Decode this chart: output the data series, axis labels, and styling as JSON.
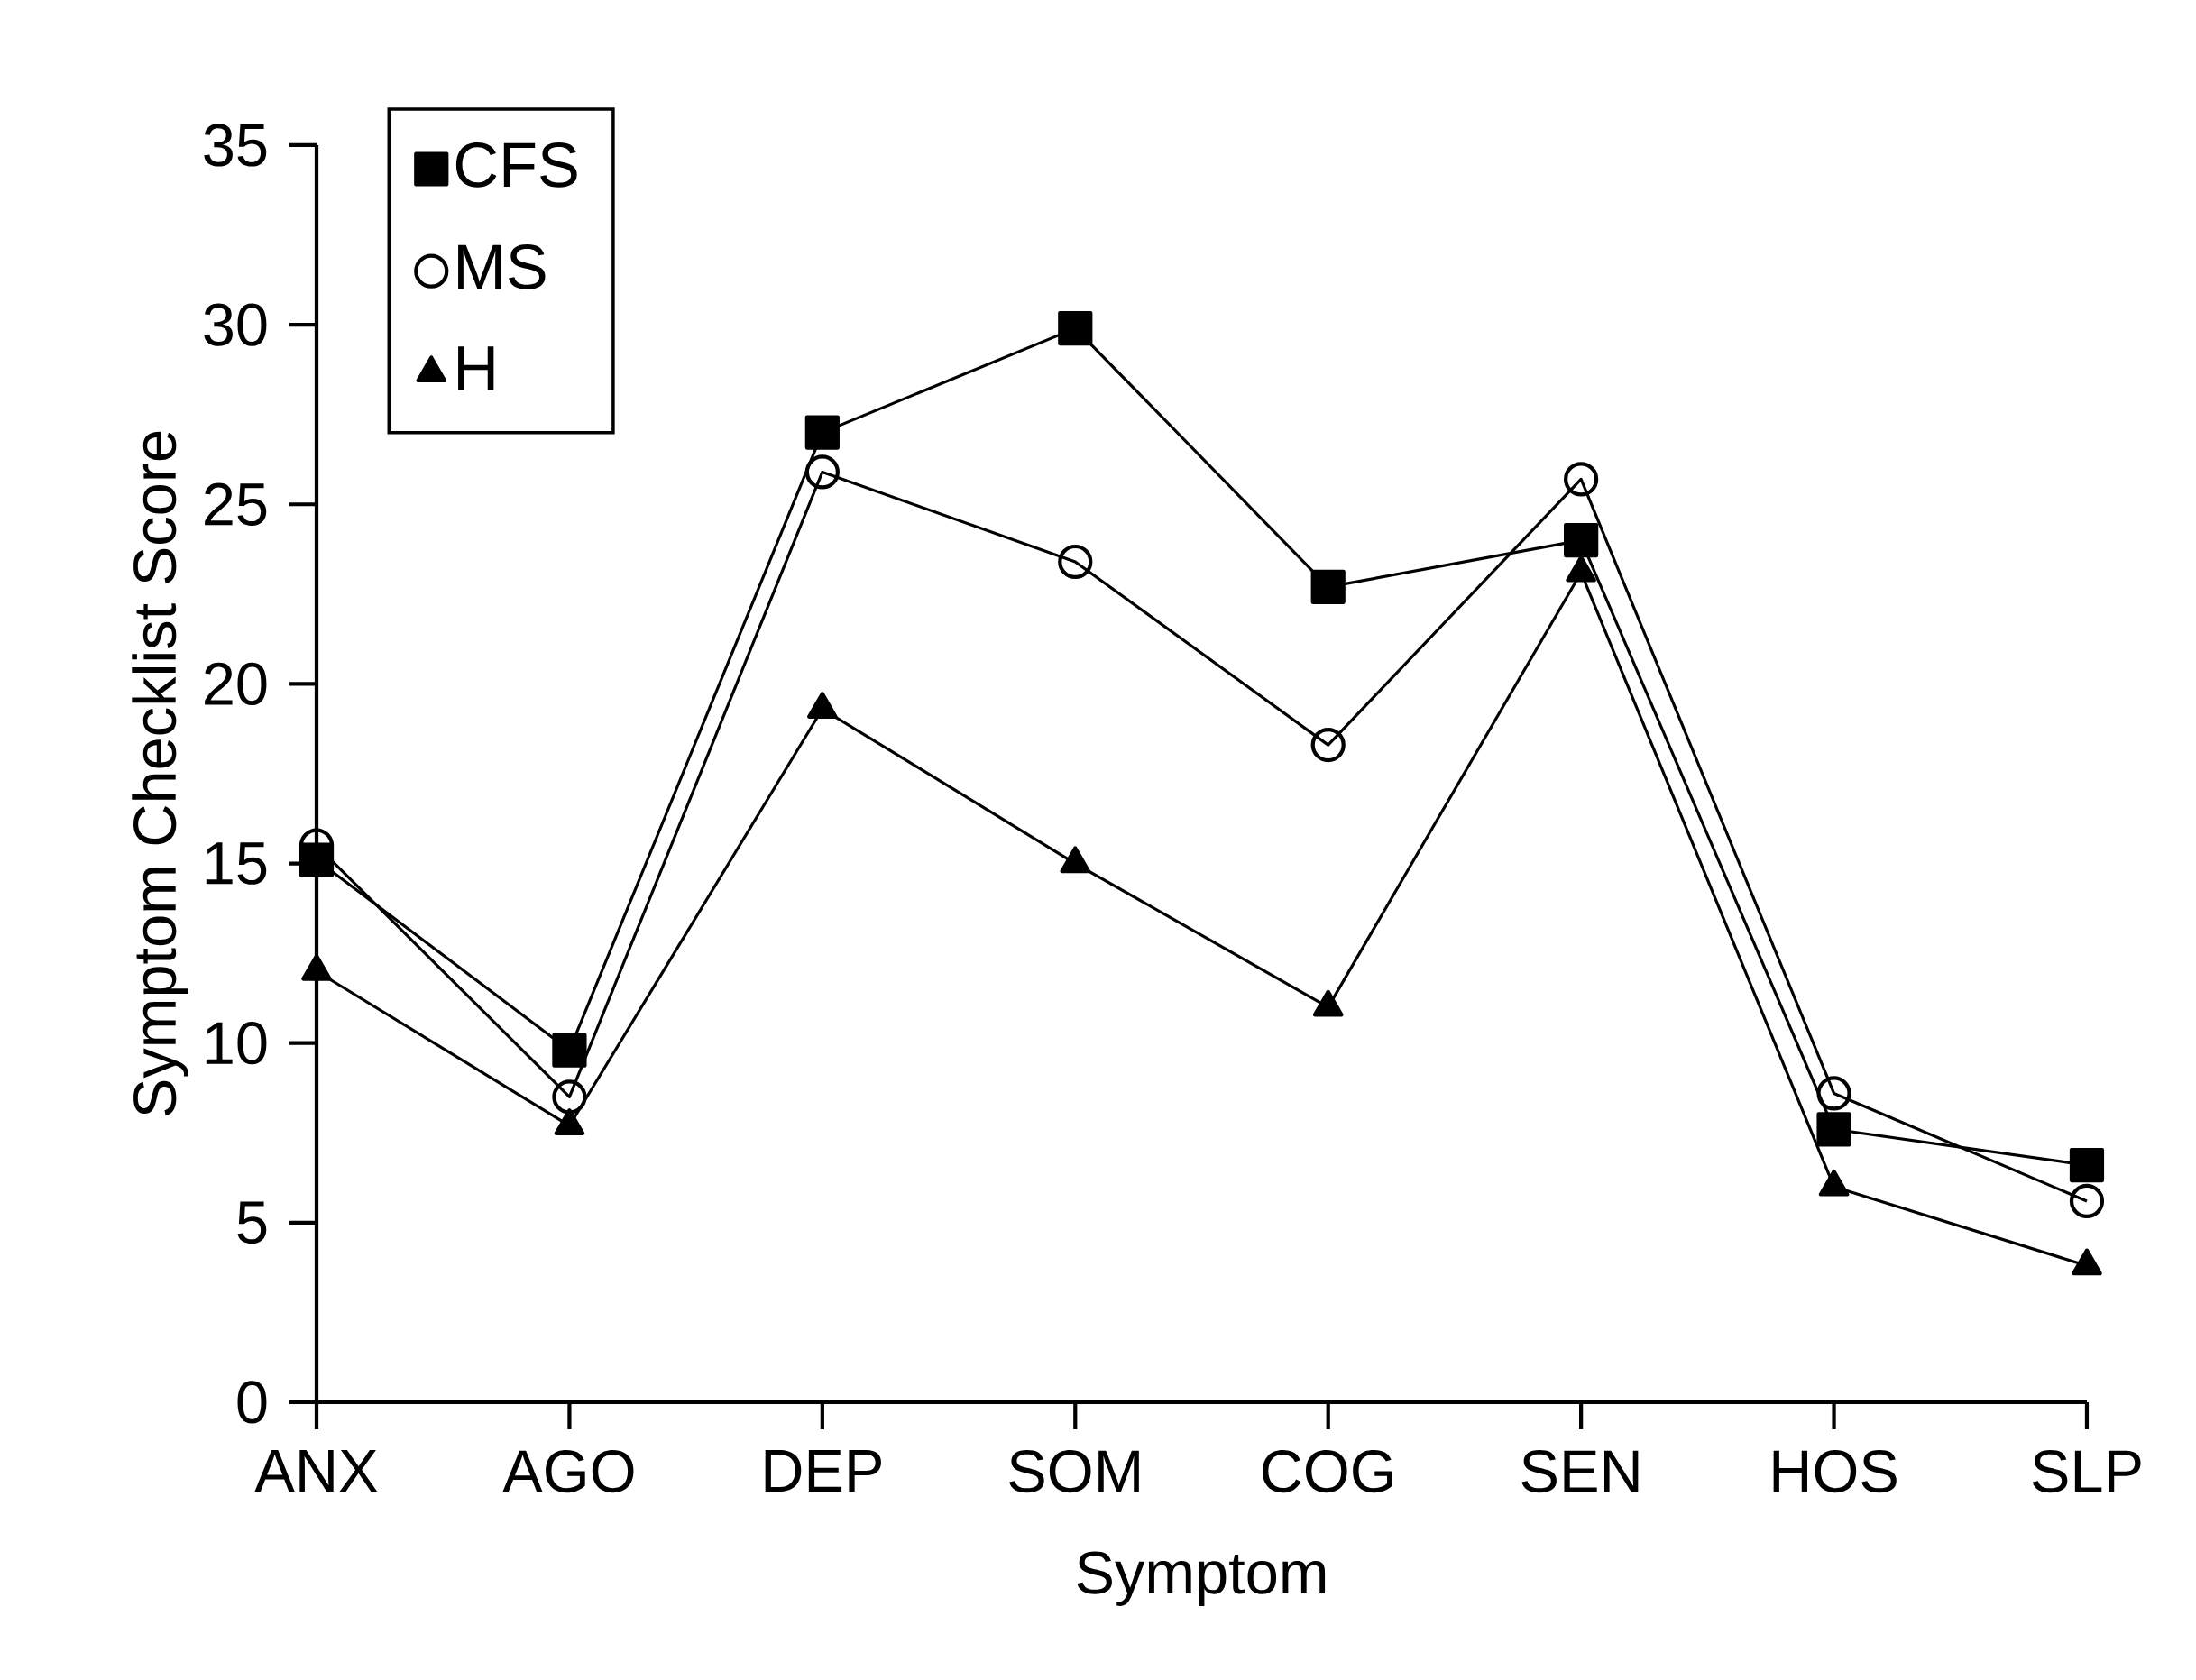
{
  "chart_data": {
    "type": "line",
    "xlabel": "Symptom",
    "ylabel": "Symptom Checklist Score",
    "categories": [
      "ANX",
      "AGO",
      "DEP",
      "SOM",
      "COG",
      "SEN",
      "HOS",
      "SLP"
    ],
    "series": [
      {
        "name": "CFS",
        "color": "#000000",
        "marker": "square",
        "values": [
          15.1,
          9.8,
          27.0,
          29.9,
          22.7,
          24.0,
          7.6,
          6.6
        ]
      },
      {
        "name": "MS",
        "color": "#000000",
        "marker": "circle",
        "values": [
          15.5,
          8.5,
          25.9,
          23.4,
          18.3,
          25.7,
          8.6,
          5.6
        ]
      },
      {
        "name": "H",
        "color": "#000000",
        "marker": "triangle",
        "values": [
          12.0,
          7.7,
          19.3,
          15.0,
          11.0,
          23.1,
          6.0,
          3.8
        ]
      }
    ],
    "ylim": [
      0,
      35
    ],
    "yticks": [
      0,
      5,
      10,
      15,
      20,
      25,
      30,
      35
    ],
    "grid": false,
    "legend": "top left",
    "line_style": "solid"
  }
}
